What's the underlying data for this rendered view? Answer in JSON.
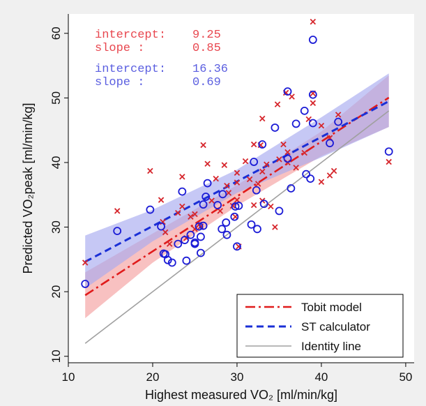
{
  "chart_data": {
    "type": "scatter",
    "title": "",
    "xlabel": "Highest measured VO₂ [ml/min/kg]",
    "ylabel": "Predicted VO₂peak [ml/min/kg]",
    "xlim": [
      10,
      51
    ],
    "ylim": [
      9,
      63
    ],
    "xticks": [
      10,
      20,
      30,
      40,
      50
    ],
    "yticks": [
      10,
      20,
      30,
      40,
      50,
      60
    ],
    "grid": false,
    "legend_position": "bottom-right",
    "annotations": [
      {
        "label": "intercept:",
        "value": "9.25",
        "color": "#e8474f"
      },
      {
        "label": "slope    :",
        "value": "0.85",
        "color": "#e8474f"
      },
      {
        "label": "intercept:",
        "value": "16.36",
        "color": "#5b5fe0"
      },
      {
        "label": "slope    :",
        "value": "0.69",
        "color": "#5b5fe0"
      }
    ],
    "series": [
      {
        "name": "Tobit model",
        "kind": "line",
        "style": "dash-dot",
        "color": "#e01b1b",
        "intercept": 9.25,
        "slope": 0.85,
        "x": [
          12,
          48
        ],
        "band": {
          "color": "#f4a0a0",
          "x": [
            12,
            20,
            30,
            40,
            48
          ],
          "lower": [
            15.9,
            24.5,
            33.3,
            41.0,
            45.5
          ],
          "upper": [
            23.0,
            29.0,
            36.5,
            44.8,
            53.5
          ]
        }
      },
      {
        "name": "ST calculator",
        "kind": "line",
        "style": "dashed",
        "color": "#1a2fd6",
        "intercept": 16.36,
        "slope": 0.69,
        "x": [
          12,
          48
        ],
        "band": {
          "color": "#a8aaf0",
          "x": [
            12,
            20,
            30,
            40,
            48
          ],
          "lower": [
            20.5,
            27.8,
            35.3,
            40.8,
            45.5
          ],
          "upper": [
            28.7,
            32.7,
            38.9,
            47.0,
            53.8
          ]
        }
      },
      {
        "name": "Identity line",
        "kind": "line",
        "style": "solid",
        "color": "#a0a0a0",
        "x": [
          12,
          48
        ],
        "y": [
          12,
          48
        ]
      },
      {
        "name": "",
        "kind": "points",
        "marker": "x",
        "color": "#d6262c",
        "points": [
          [
            12,
            24.5
          ],
          [
            15.8,
            32.5
          ],
          [
            19.7,
            38.7
          ],
          [
            21,
            34.2
          ],
          [
            21.2,
            30.8
          ],
          [
            21.5,
            29.2
          ],
          [
            22,
            27.4
          ],
          [
            23,
            32.2
          ],
          [
            23.5,
            37.8
          ],
          [
            23.5,
            33.2
          ],
          [
            24,
            28.3
          ],
          [
            24.5,
            31.6
          ],
          [
            25,
            32
          ],
          [
            25,
            29.7
          ],
          [
            25.5,
            30.4
          ],
          [
            25.7,
            30.1
          ],
          [
            26,
            42.7
          ],
          [
            26.5,
            39.8
          ],
          [
            27,
            34.1
          ],
          [
            27.5,
            37.5
          ],
          [
            28,
            32.5
          ],
          [
            28.5,
            39.6
          ],
          [
            28.8,
            36.4
          ],
          [
            29,
            35.3
          ],
          [
            29.5,
            33.3
          ],
          [
            29.8,
            31.6
          ],
          [
            30,
            38.4
          ],
          [
            30,
            36.9
          ],
          [
            30,
            34.2
          ],
          [
            30.2,
            27
          ],
          [
            31,
            40.2
          ],
          [
            31.5,
            37.4
          ],
          [
            32,
            42.8
          ],
          [
            32,
            33.4
          ],
          [
            32.5,
            36.7
          ],
          [
            32.8,
            42.7
          ],
          [
            33,
            46.8
          ],
          [
            33,
            38.6
          ],
          [
            33,
            34.1
          ],
          [
            33.5,
            39.7
          ],
          [
            34,
            33.2
          ],
          [
            34.5,
            30
          ],
          [
            34.8,
            49
          ],
          [
            35,
            40.5
          ],
          [
            35.5,
            42.8
          ],
          [
            35.8,
            50.8
          ],
          [
            36,
            41.6
          ],
          [
            36,
            40
          ],
          [
            36.5,
            50.2
          ],
          [
            37,
            39.2
          ],
          [
            38,
            41.5
          ],
          [
            38.5,
            46.7
          ],
          [
            39,
            61.8
          ],
          [
            39,
            50.7
          ],
          [
            39,
            49.2
          ],
          [
            40,
            37
          ],
          [
            40,
            45.7
          ],
          [
            41,
            43.8
          ],
          [
            41,
            38
          ],
          [
            41.5,
            38.7
          ],
          [
            42,
            47.4
          ],
          [
            48,
            40.1
          ]
        ]
      },
      {
        "name": "",
        "kind": "points",
        "marker": "o",
        "color": "#1b1bd6",
        "points": [
          [
            12,
            21.2
          ],
          [
            15.8,
            29.4
          ],
          [
            19.7,
            32.7
          ],
          [
            21,
            30.1
          ],
          [
            21.3,
            25.9
          ],
          [
            21.5,
            25.8
          ],
          [
            21.8,
            24.9
          ],
          [
            22.3,
            24.5
          ],
          [
            23,
            27.4
          ],
          [
            23.5,
            35.5
          ],
          [
            23.8,
            28
          ],
          [
            24,
            24.8
          ],
          [
            24.5,
            28.8
          ],
          [
            25,
            27.6
          ],
          [
            25,
            27.4
          ],
          [
            25.5,
            30.1
          ],
          [
            25.7,
            26
          ],
          [
            25.7,
            28.5
          ],
          [
            26,
            33.5
          ],
          [
            26,
            30.2
          ],
          [
            26.3,
            34.7
          ],
          [
            26.5,
            36.8
          ],
          [
            27.7,
            33.4
          ],
          [
            28.2,
            29.7
          ],
          [
            28.3,
            35.1
          ],
          [
            28.7,
            30.7
          ],
          [
            28.8,
            28.8
          ],
          [
            29.7,
            31.6
          ],
          [
            29.8,
            33.2
          ],
          [
            30,
            27
          ],
          [
            30.2,
            33.3
          ],
          [
            31.7,
            30.4
          ],
          [
            32,
            40.1
          ],
          [
            32.3,
            35.7
          ],
          [
            32.4,
            29.7
          ],
          [
            33,
            42.8
          ],
          [
            33.2,
            33.6
          ],
          [
            34.5,
            45.4
          ],
          [
            35,
            32.5
          ],
          [
            36,
            51
          ],
          [
            36,
            40.6
          ],
          [
            36.4,
            36
          ],
          [
            37,
            46
          ],
          [
            38,
            48
          ],
          [
            38.2,
            38.2
          ],
          [
            38.7,
            37.5
          ],
          [
            39,
            59
          ],
          [
            39,
            50.5
          ],
          [
            39,
            46.1
          ],
          [
            41,
            43
          ],
          [
            42,
            46.3
          ],
          [
            48,
            41.7
          ]
        ]
      }
    ]
  }
}
